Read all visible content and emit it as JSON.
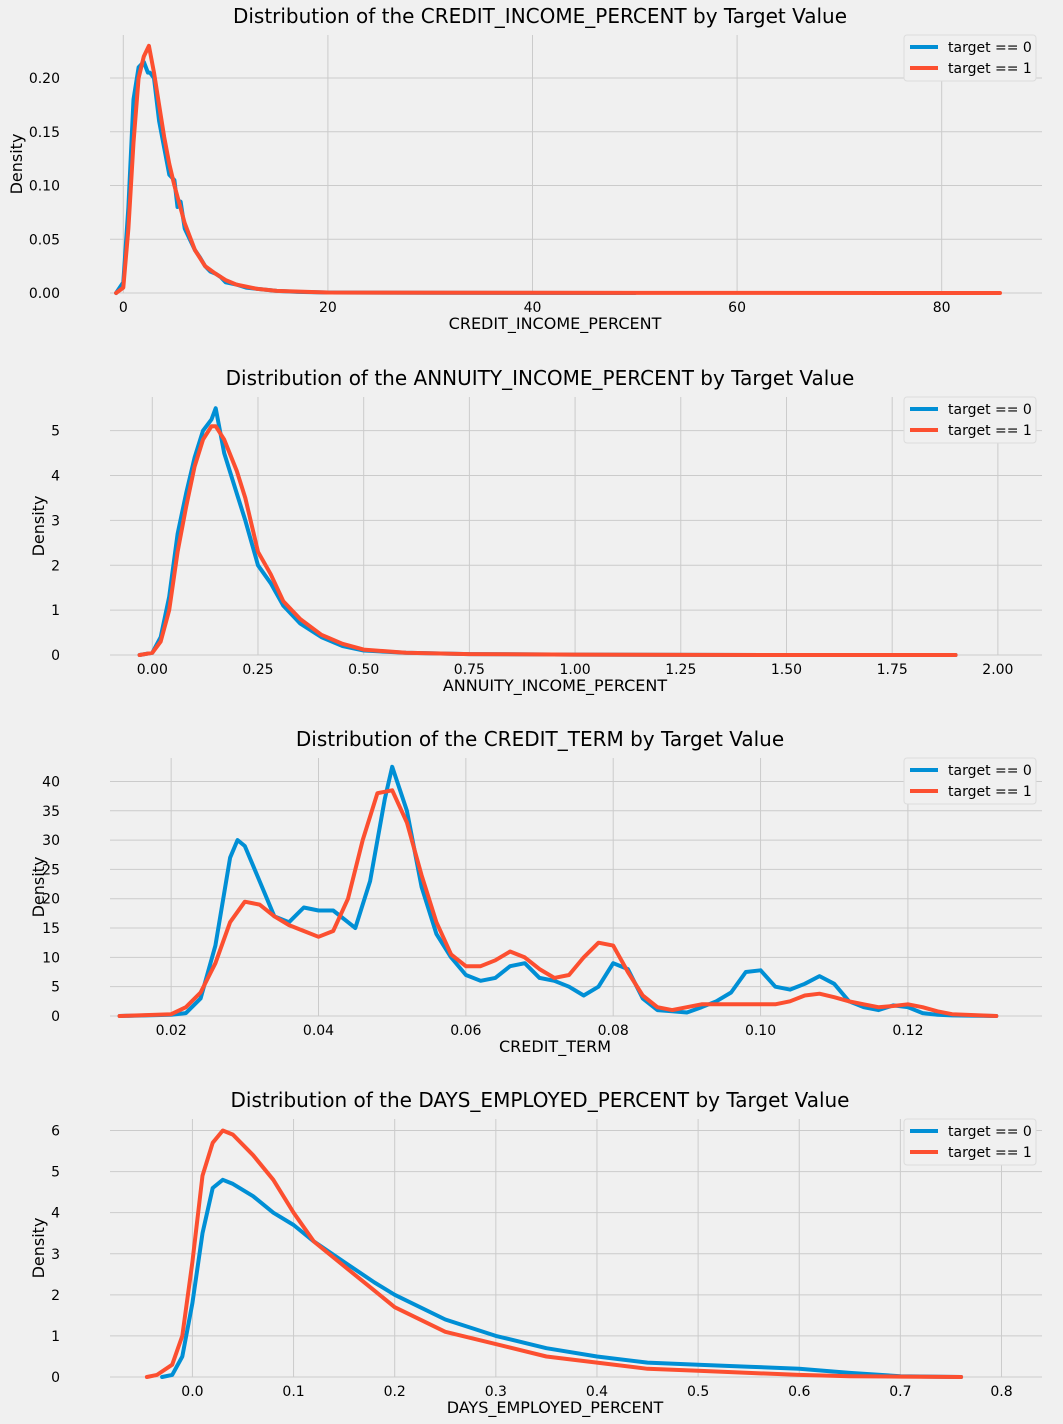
{
  "colors": {
    "target_0": "#008fd5",
    "target_1": "#fc4f30",
    "background": "#f0f0f0",
    "grid": "#cbcbcb"
  },
  "chart_data": [
    {
      "type": "line",
      "title": "Distribution of the CREDIT_INCOME_PERCENT by Target Value",
      "xlabel": "CREDIT_INCOME_PERCENT",
      "ylabel": "Density",
      "xlim": [
        -1.3,
        85.7
      ],
      "ylim": [
        0,
        0.24
      ],
      "xticks": [
        0,
        20,
        40,
        60,
        80
      ],
      "xtick_labels": [
        "0",
        "20",
        "40",
        "60",
        "80"
      ],
      "yticks": [
        0,
        0.05,
        0.1,
        0.15,
        0.2
      ],
      "ytick_labels": [
        "0.00",
        "0.05",
        "0.10",
        "0.15",
        "0.20"
      ],
      "legend": "top-right",
      "grid": true,
      "series": [
        {
          "name": "target == 0",
          "x": [
            -0.7,
            0.0,
            0.5,
            1.0,
            1.5,
            2.0,
            2.4,
            2.6,
            3.0,
            3.5,
            4.0,
            4.5,
            5.0,
            5.3,
            5.6,
            6.0,
            6.5,
            7.0,
            7.5,
            8.0,
            8.5,
            9.0,
            9.5,
            10.0,
            11.0,
            12.0,
            13.0,
            15.0,
            17.0,
            20.0,
            30.0,
            50.0
          ],
          "y": [
            0,
            0.01,
            0.08,
            0.18,
            0.21,
            0.215,
            0.205,
            0.205,
            0.2,
            0.16,
            0.135,
            0.11,
            0.105,
            0.08,
            0.085,
            0.06,
            0.05,
            0.04,
            0.033,
            0.025,
            0.02,
            0.018,
            0.015,
            0.01,
            0.008,
            0.005,
            0.004,
            0.002,
            0.001,
            0.0005,
            0.0002,
            0.0
          ]
        },
        {
          "name": "target == 1",
          "x": [
            -0.7,
            0.0,
            0.5,
            1.0,
            1.5,
            2.0,
            2.5,
            3.0,
            3.5,
            4.0,
            4.5,
            5.0,
            6.0,
            7.0,
            8.0,
            9.0,
            10.0,
            11.0,
            12.0,
            13.0,
            15.0,
            18.0,
            20.0,
            40.0,
            60.0,
            85.7
          ],
          "y": [
            0,
            0.005,
            0.06,
            0.14,
            0.2,
            0.22,
            0.23,
            0.205,
            0.175,
            0.145,
            0.12,
            0.1,
            0.065,
            0.04,
            0.025,
            0.018,
            0.012,
            0.008,
            0.006,
            0.004,
            0.002,
            0.001,
            0.0005,
            0.0002,
            0.0001,
            0.0
          ]
        }
      ]
    },
    {
      "type": "line",
      "title": "Distribution of the ANNUITY_INCOME_PERCENT by Target Value",
      "xlabel": "ANNUITY_INCOME_PERCENT",
      "ylabel": "Density",
      "xlim": [
        -0.1,
        2.005
      ],
      "ylim": [
        0,
        5.75
      ],
      "xticks": [
        0,
        0.25,
        0.5,
        0.75,
        1.0,
        1.25,
        1.5,
        1.75,
        2.0
      ],
      "xtick_labels": [
        "0.00",
        "0.25",
        "0.50",
        "0.75",
        "1.00",
        "1.25",
        "1.50",
        "1.75",
        "2.00"
      ],
      "yticks": [
        0,
        1,
        2,
        3,
        4,
        5
      ],
      "ytick_labels": [
        "0",
        "1",
        "2",
        "3",
        "4",
        "5"
      ],
      "legend": "top-right",
      "grid": true,
      "series": [
        {
          "name": "target == 0",
          "x": [
            -0.03,
            0.0,
            0.02,
            0.04,
            0.06,
            0.08,
            0.1,
            0.12,
            0.14,
            0.15,
            0.17,
            0.2,
            0.22,
            0.25,
            0.28,
            0.31,
            0.35,
            0.4,
            0.45,
            0.5,
            0.6,
            0.75,
            1.0,
            1.5,
            1.9
          ],
          "y": [
            0,
            0.05,
            0.4,
            1.3,
            2.7,
            3.6,
            4.4,
            5.0,
            5.25,
            5.5,
            4.5,
            3.6,
            3.0,
            2.0,
            1.6,
            1.1,
            0.7,
            0.4,
            0.2,
            0.1,
            0.05,
            0.02,
            0.01,
            0.0,
            0.0
          ]
        },
        {
          "name": "target == 1",
          "x": [
            -0.03,
            0.0,
            0.02,
            0.04,
            0.06,
            0.08,
            0.1,
            0.12,
            0.14,
            0.15,
            0.17,
            0.2,
            0.22,
            0.25,
            0.28,
            0.31,
            0.35,
            0.4,
            0.45,
            0.5,
            0.6,
            0.75,
            1.0,
            1.5,
            1.9
          ],
          "y": [
            0,
            0.05,
            0.3,
            1.0,
            2.3,
            3.3,
            4.2,
            4.8,
            5.1,
            5.1,
            4.8,
            4.1,
            3.5,
            2.3,
            1.8,
            1.2,
            0.8,
            0.45,
            0.25,
            0.12,
            0.05,
            0.02,
            0.01,
            0.0,
            0.0
          ]
        }
      ]
    },
    {
      "type": "line",
      "title": "Distribution of the CREDIT_TERM by Target Value",
      "xlabel": "CREDIT_TERM",
      "ylabel": "Density",
      "xlim": [
        0.0117,
        0.1325
      ],
      "ylim": [
        0,
        44
      ],
      "xticks": [
        0.02,
        0.04,
        0.06,
        0.08,
        0.1,
        0.12
      ],
      "xtick_labels": [
        "0.02",
        "0.04",
        "0.06",
        "0.08",
        "0.10",
        "0.12"
      ],
      "yticks": [
        0,
        5,
        10,
        15,
        20,
        25,
        30,
        35,
        40
      ],
      "ytick_labels": [
        "0",
        "5",
        "10",
        "15",
        "20",
        "25",
        "30",
        "35",
        "40"
      ],
      "legend": "top-right",
      "grid": true,
      "series": [
        {
          "name": "target == 0",
          "x": [
            0.013,
            0.02,
            0.022,
            0.024,
            0.026,
            0.028,
            0.029,
            0.03,
            0.032,
            0.034,
            0.036,
            0.038,
            0.04,
            0.042,
            0.044,
            0.045,
            0.047,
            0.049,
            0.05,
            0.052,
            0.054,
            0.056,
            0.058,
            0.06,
            0.062,
            0.064,
            0.066,
            0.068,
            0.07,
            0.072,
            0.074,
            0.076,
            0.078,
            0.08,
            0.082,
            0.084,
            0.086,
            0.088,
            0.09,
            0.092,
            0.094,
            0.096,
            0.098,
            0.1,
            0.102,
            0.104,
            0.106,
            0.108,
            0.11,
            0.112,
            0.114,
            0.116,
            0.118,
            0.12,
            0.122,
            0.124,
            0.126,
            0.132
          ],
          "y": [
            0,
            0.2,
            0.5,
            3,
            12,
            27,
            30,
            29,
            23,
            17,
            16,
            18.5,
            18,
            18,
            16,
            15,
            23,
            37,
            42.5,
            35,
            22,
            14,
            10,
            7,
            6,
            6.5,
            8.5,
            9,
            6.5,
            6,
            5,
            3.5,
            5,
            9,
            8,
            3,
            1,
            0.8,
            0.6,
            1.5,
            2.5,
            4,
            7.5,
            7.8,
            5,
            4.5,
            5.5,
            6.8,
            5.5,
            2.5,
            1.5,
            1,
            1.8,
            1.5,
            0.5,
            0.2,
            0.1,
            0
          ]
        },
        {
          "name": "target == 1",
          "x": [
            0.013,
            0.02,
            0.022,
            0.024,
            0.026,
            0.028,
            0.03,
            0.032,
            0.034,
            0.036,
            0.038,
            0.04,
            0.042,
            0.044,
            0.046,
            0.048,
            0.05,
            0.052,
            0.054,
            0.056,
            0.058,
            0.06,
            0.062,
            0.064,
            0.066,
            0.068,
            0.07,
            0.072,
            0.074,
            0.076,
            0.078,
            0.08,
            0.082,
            0.084,
            0.086,
            0.088,
            0.09,
            0.092,
            0.094,
            0.096,
            0.098,
            0.1,
            0.102,
            0.104,
            0.106,
            0.108,
            0.11,
            0.112,
            0.114,
            0.116,
            0.118,
            0.12,
            0.122,
            0.124,
            0.126,
            0.132
          ],
          "y": [
            0,
            0.3,
            1.5,
            4,
            9,
            16,
            19.5,
            19,
            17,
            15.5,
            14.5,
            13.5,
            14.5,
            20,
            30,
            38,
            38.5,
            33,
            24,
            16,
            10.5,
            8.5,
            8.5,
            9.5,
            11,
            10,
            8,
            6.5,
            7,
            10,
            12.5,
            12,
            7.5,
            3.5,
            1.5,
            1,
            1.5,
            2,
            2,
            2,
            2,
            2,
            2,
            2.5,
            3.5,
            3.8,
            3.2,
            2.5,
            2,
            1.5,
            1.7,
            2,
            1.5,
            0.8,
            0.3,
            0
          ]
        }
      ]
    },
    {
      "type": "line",
      "title": "Distribution of the DAYS_EMPLOYED_PERCENT by Target Value",
      "xlabel": "DAYS_EMPLOYED_PERCENT",
      "ylabel": "Density",
      "xlim": [
        -0.0815,
        0.7985
      ],
      "ylim": [
        0,
        6.28
      ],
      "xticks": [
        0,
        0.1,
        0.2,
        0.3,
        0.4,
        0.5,
        0.6,
        0.7,
        0.8
      ],
      "xtick_labels": [
        "0.0",
        "0.1",
        "0.2",
        "0.3",
        "0.4",
        "0.5",
        "0.6",
        "0.7",
        "0.8"
      ],
      "yticks": [
        0,
        1,
        2,
        3,
        4,
        5,
        6
      ],
      "ytick_labels": [
        "0",
        "1",
        "2",
        "3",
        "4",
        "5",
        "6"
      ],
      "legend": "top-right",
      "grid": true,
      "series": [
        {
          "name": "target == 0",
          "x": [
            -0.03,
            -0.02,
            -0.01,
            0.0,
            0.01,
            0.02,
            0.03,
            0.04,
            0.06,
            0.08,
            0.1,
            0.12,
            0.15,
            0.18,
            0.2,
            0.25,
            0.3,
            0.35,
            0.4,
            0.45,
            0.5,
            0.55,
            0.6,
            0.65,
            0.7,
            0.76
          ],
          "y": [
            0,
            0.05,
            0.5,
            1.8,
            3.5,
            4.6,
            4.8,
            4.7,
            4.4,
            4.0,
            3.7,
            3.3,
            2.8,
            2.3,
            2.0,
            1.4,
            1.0,
            0.7,
            0.5,
            0.35,
            0.3,
            0.25,
            0.2,
            0.1,
            0.02,
            0.0
          ]
        },
        {
          "name": "target == 1",
          "x": [
            -0.045,
            -0.035,
            -0.02,
            -0.01,
            0.0,
            0.01,
            0.02,
            0.03,
            0.04,
            0.06,
            0.08,
            0.1,
            0.12,
            0.15,
            0.18,
            0.2,
            0.25,
            0.3,
            0.35,
            0.4,
            0.45,
            0.5,
            0.55,
            0.6,
            0.65,
            0.7,
            0.76
          ],
          "y": [
            0,
            0.05,
            0.3,
            1.0,
            2.8,
            4.9,
            5.7,
            6.0,
            5.9,
            5.4,
            4.8,
            4.0,
            3.3,
            2.7,
            2.1,
            1.7,
            1.1,
            0.8,
            0.5,
            0.35,
            0.2,
            0.15,
            0.1,
            0.05,
            0.02,
            0.01,
            0.0
          ]
        }
      ]
    }
  ]
}
